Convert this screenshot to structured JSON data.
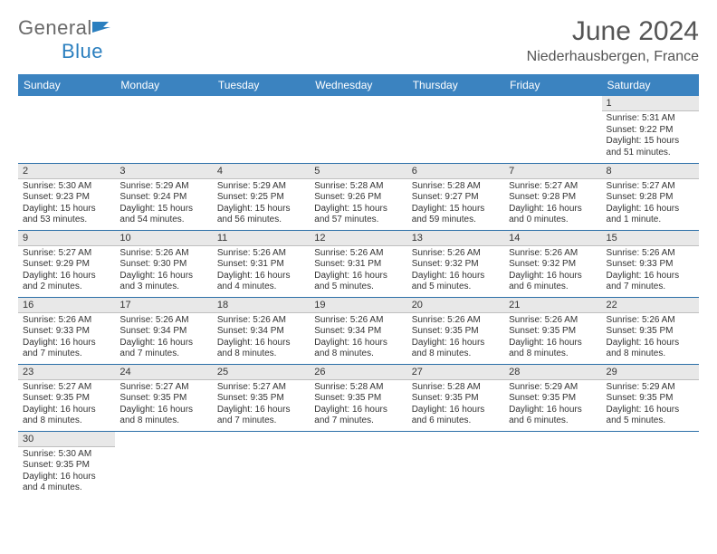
{
  "brand": {
    "part1": "General",
    "part2": "Blue"
  },
  "title": "June 2024",
  "location": "Niederhausbergen, France",
  "colors": {
    "header_bg": "#3b83c0",
    "header_fg": "#ffffff",
    "daynum_bg": "#e8e8e8",
    "week_sep": "#2b6fa8",
    "text": "#333333"
  },
  "weekdays": [
    "Sunday",
    "Monday",
    "Tuesday",
    "Wednesday",
    "Thursday",
    "Friday",
    "Saturday"
  ],
  "weeks": [
    [
      null,
      null,
      null,
      null,
      null,
      null,
      {
        "n": "1",
        "sr": "Sunrise: 5:31 AM",
        "ss": "Sunset: 9:22 PM",
        "d1": "Daylight: 15 hours",
        "d2": "and 51 minutes."
      }
    ],
    [
      {
        "n": "2",
        "sr": "Sunrise: 5:30 AM",
        "ss": "Sunset: 9:23 PM",
        "d1": "Daylight: 15 hours",
        "d2": "and 53 minutes."
      },
      {
        "n": "3",
        "sr": "Sunrise: 5:29 AM",
        "ss": "Sunset: 9:24 PM",
        "d1": "Daylight: 15 hours",
        "d2": "and 54 minutes."
      },
      {
        "n": "4",
        "sr": "Sunrise: 5:29 AM",
        "ss": "Sunset: 9:25 PM",
        "d1": "Daylight: 15 hours",
        "d2": "and 56 minutes."
      },
      {
        "n": "5",
        "sr": "Sunrise: 5:28 AM",
        "ss": "Sunset: 9:26 PM",
        "d1": "Daylight: 15 hours",
        "d2": "and 57 minutes."
      },
      {
        "n": "6",
        "sr": "Sunrise: 5:28 AM",
        "ss": "Sunset: 9:27 PM",
        "d1": "Daylight: 15 hours",
        "d2": "and 59 minutes."
      },
      {
        "n": "7",
        "sr": "Sunrise: 5:27 AM",
        "ss": "Sunset: 9:28 PM",
        "d1": "Daylight: 16 hours",
        "d2": "and 0 minutes."
      },
      {
        "n": "8",
        "sr": "Sunrise: 5:27 AM",
        "ss": "Sunset: 9:28 PM",
        "d1": "Daylight: 16 hours",
        "d2": "and 1 minute."
      }
    ],
    [
      {
        "n": "9",
        "sr": "Sunrise: 5:27 AM",
        "ss": "Sunset: 9:29 PM",
        "d1": "Daylight: 16 hours",
        "d2": "and 2 minutes."
      },
      {
        "n": "10",
        "sr": "Sunrise: 5:26 AM",
        "ss": "Sunset: 9:30 PM",
        "d1": "Daylight: 16 hours",
        "d2": "and 3 minutes."
      },
      {
        "n": "11",
        "sr": "Sunrise: 5:26 AM",
        "ss": "Sunset: 9:31 PM",
        "d1": "Daylight: 16 hours",
        "d2": "and 4 minutes."
      },
      {
        "n": "12",
        "sr": "Sunrise: 5:26 AM",
        "ss": "Sunset: 9:31 PM",
        "d1": "Daylight: 16 hours",
        "d2": "and 5 minutes."
      },
      {
        "n": "13",
        "sr": "Sunrise: 5:26 AM",
        "ss": "Sunset: 9:32 PM",
        "d1": "Daylight: 16 hours",
        "d2": "and 5 minutes."
      },
      {
        "n": "14",
        "sr": "Sunrise: 5:26 AM",
        "ss": "Sunset: 9:32 PM",
        "d1": "Daylight: 16 hours",
        "d2": "and 6 minutes."
      },
      {
        "n": "15",
        "sr": "Sunrise: 5:26 AM",
        "ss": "Sunset: 9:33 PM",
        "d1": "Daylight: 16 hours",
        "d2": "and 7 minutes."
      }
    ],
    [
      {
        "n": "16",
        "sr": "Sunrise: 5:26 AM",
        "ss": "Sunset: 9:33 PM",
        "d1": "Daylight: 16 hours",
        "d2": "and 7 minutes."
      },
      {
        "n": "17",
        "sr": "Sunrise: 5:26 AM",
        "ss": "Sunset: 9:34 PM",
        "d1": "Daylight: 16 hours",
        "d2": "and 7 minutes."
      },
      {
        "n": "18",
        "sr": "Sunrise: 5:26 AM",
        "ss": "Sunset: 9:34 PM",
        "d1": "Daylight: 16 hours",
        "d2": "and 8 minutes."
      },
      {
        "n": "19",
        "sr": "Sunrise: 5:26 AM",
        "ss": "Sunset: 9:34 PM",
        "d1": "Daylight: 16 hours",
        "d2": "and 8 minutes."
      },
      {
        "n": "20",
        "sr": "Sunrise: 5:26 AM",
        "ss": "Sunset: 9:35 PM",
        "d1": "Daylight: 16 hours",
        "d2": "and 8 minutes."
      },
      {
        "n": "21",
        "sr": "Sunrise: 5:26 AM",
        "ss": "Sunset: 9:35 PM",
        "d1": "Daylight: 16 hours",
        "d2": "and 8 minutes."
      },
      {
        "n": "22",
        "sr": "Sunrise: 5:26 AM",
        "ss": "Sunset: 9:35 PM",
        "d1": "Daylight: 16 hours",
        "d2": "and 8 minutes."
      }
    ],
    [
      {
        "n": "23",
        "sr": "Sunrise: 5:27 AM",
        "ss": "Sunset: 9:35 PM",
        "d1": "Daylight: 16 hours",
        "d2": "and 8 minutes."
      },
      {
        "n": "24",
        "sr": "Sunrise: 5:27 AM",
        "ss": "Sunset: 9:35 PM",
        "d1": "Daylight: 16 hours",
        "d2": "and 8 minutes."
      },
      {
        "n": "25",
        "sr": "Sunrise: 5:27 AM",
        "ss": "Sunset: 9:35 PM",
        "d1": "Daylight: 16 hours",
        "d2": "and 7 minutes."
      },
      {
        "n": "26",
        "sr": "Sunrise: 5:28 AM",
        "ss": "Sunset: 9:35 PM",
        "d1": "Daylight: 16 hours",
        "d2": "and 7 minutes."
      },
      {
        "n": "27",
        "sr": "Sunrise: 5:28 AM",
        "ss": "Sunset: 9:35 PM",
        "d1": "Daylight: 16 hours",
        "d2": "and 6 minutes."
      },
      {
        "n": "28",
        "sr": "Sunrise: 5:29 AM",
        "ss": "Sunset: 9:35 PM",
        "d1": "Daylight: 16 hours",
        "d2": "and 6 minutes."
      },
      {
        "n": "29",
        "sr": "Sunrise: 5:29 AM",
        "ss": "Sunset: 9:35 PM",
        "d1": "Daylight: 16 hours",
        "d2": "and 5 minutes."
      }
    ],
    [
      {
        "n": "30",
        "sr": "Sunrise: 5:30 AM",
        "ss": "Sunset: 9:35 PM",
        "d1": "Daylight: 16 hours",
        "d2": "and 4 minutes."
      },
      null,
      null,
      null,
      null,
      null,
      null
    ]
  ]
}
